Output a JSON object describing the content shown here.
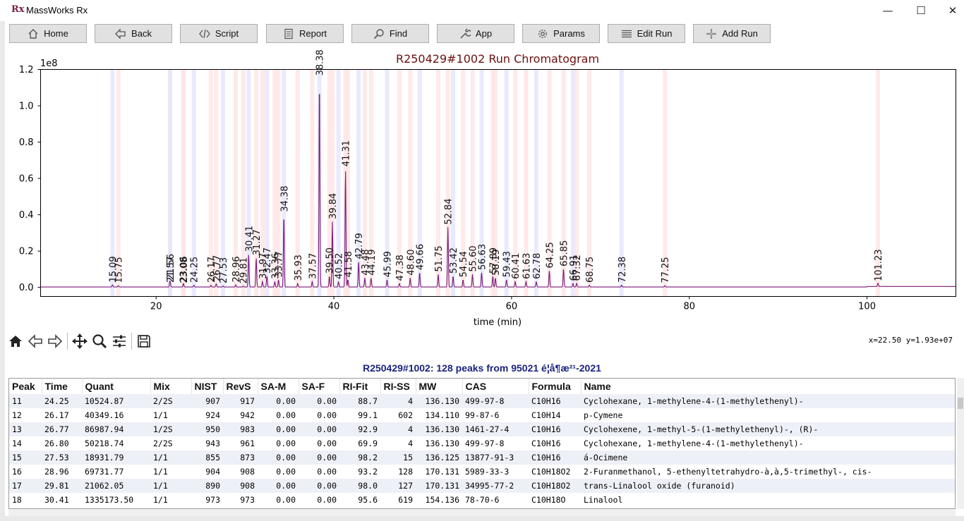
{
  "window": {
    "title": "MassWorks Rx",
    "logo": "Rx",
    "controls": [
      "—",
      "☐",
      "✕"
    ]
  },
  "toolbar": [
    {
      "label": "Home",
      "icon": "home-icon"
    },
    {
      "label": "Back",
      "icon": "back-arrow-icon"
    },
    {
      "label": "Script",
      "icon": "script-icon"
    },
    {
      "label": "Report",
      "icon": "report-icon"
    },
    {
      "label": "Find",
      "icon": "search-icon"
    },
    {
      "label": "App",
      "icon": "wrench-icon"
    },
    {
      "label": "Params",
      "icon": "gear-icon"
    },
    {
      "label": "Edit Run",
      "icon": "list-icon"
    },
    {
      "label": "Add Run",
      "icon": "plus-icon"
    }
  ],
  "chart_data": {
    "type": "line",
    "title": "R250429#1002 Run Chromatogram",
    "xlabel": "time (min)",
    "ylabel": "",
    "y_offset_label": "1e8",
    "xlim": [
      7,
      110
    ],
    "ylim": [
      -0.05,
      1.2
    ],
    "xticks": [
      20,
      40,
      60,
      80,
      100
    ],
    "yticks": [
      0.0,
      0.2,
      0.4,
      0.6,
      0.8,
      1.0,
      1.2
    ],
    "ytick_labels": [
      "0.0",
      "0.2",
      "0.4",
      "0.6",
      "0.8",
      "1.0",
      "1.2"
    ],
    "grid": false,
    "line_color": "#7b1a7b",
    "peaks": [
      {
        "t": 15.09,
        "h": 0.012,
        "label": "15.09"
      },
      {
        "t": 15.75,
        "h": 0.008,
        "label": "15.75"
      },
      {
        "t": 21.56,
        "h": 0.025,
        "label": "21.56"
      },
      {
        "t": 21.57,
        "h": 0.01,
        "label": "21.57"
      },
      {
        "t": 23.06,
        "h": 0.012,
        "label": "23.06"
      },
      {
        "t": 23.08,
        "h": 0.008,
        "label": "23.08"
      },
      {
        "t": 24.25,
        "h": 0.01,
        "label": "24.25"
      },
      {
        "t": 26.17,
        "h": 0.01,
        "label": "26.17"
      },
      {
        "t": 26.77,
        "h": 0.018,
        "label": "26.77"
      },
      {
        "t": 27.53,
        "h": 0.006,
        "label": "27.53"
      },
      {
        "t": 28.96,
        "h": 0.012,
        "label": "28.96"
      },
      {
        "t": 29.81,
        "h": 0.005,
        "label": "29.81"
      },
      {
        "t": 30.41,
        "h": 0.18,
        "label": "30.41"
      },
      {
        "t": 31.27,
        "h": 0.16,
        "label": "31.27"
      },
      {
        "t": 31.97,
        "h": 0.03,
        "label": "31.97"
      },
      {
        "t": 32.47,
        "h": 0.06,
        "label": "32.47"
      },
      {
        "t": 33.36,
        "h": 0.03,
        "label": "33.36"
      },
      {
        "t": 33.77,
        "h": 0.04,
        "label": "33.77"
      },
      {
        "t": 34.38,
        "h": 0.4,
        "label": "34.38"
      },
      {
        "t": 35.93,
        "h": 0.02,
        "label": "35.93"
      },
      {
        "t": 37.57,
        "h": 0.03,
        "label": "37.57"
      },
      {
        "t": 38.38,
        "h": 1.15,
        "label": "38.38"
      },
      {
        "t": 39.5,
        "h": 0.06,
        "label": "39.50"
      },
      {
        "t": 39.84,
        "h": 0.36,
        "label": "39.84"
      },
      {
        "t": 40.52,
        "h": 0.03,
        "label": "40.52"
      },
      {
        "t": 41.31,
        "h": 0.65,
        "label": "41.31"
      },
      {
        "t": 41.58,
        "h": 0.04,
        "label": "41.58"
      },
      {
        "t": 42.79,
        "h": 0.14,
        "label": "42.79"
      },
      {
        "t": 43.48,
        "h": 0.05,
        "label": "43.48"
      },
      {
        "t": 44.19,
        "h": 0.05,
        "label": "44.19"
      },
      {
        "t": 45.99,
        "h": 0.04,
        "label": "45.99"
      },
      {
        "t": 47.38,
        "h": 0.02,
        "label": "47.38"
      },
      {
        "t": 48.6,
        "h": 0.05,
        "label": "48.60"
      },
      {
        "t": 49.66,
        "h": 0.08,
        "label": "49.66"
      },
      {
        "t": 51.75,
        "h": 0.07,
        "label": "51.75"
      },
      {
        "t": 52.84,
        "h": 0.33,
        "label": "52.84"
      },
      {
        "t": 53.42,
        "h": 0.06,
        "label": "53.42"
      },
      {
        "t": 54.54,
        "h": 0.04,
        "label": "54.54"
      },
      {
        "t": 55.6,
        "h": 0.07,
        "label": "55.60"
      },
      {
        "t": 56.63,
        "h": 0.08,
        "label": "56.63"
      },
      {
        "t": 57.89,
        "h": 0.06,
        "label": "57.89"
      },
      {
        "t": 58.19,
        "h": 0.05,
        "label": "58.19"
      },
      {
        "t": 59.43,
        "h": 0.04,
        "label": "59.43"
      },
      {
        "t": 60.41,
        "h": 0.03,
        "label": "60.41"
      },
      {
        "t": 61.63,
        "h": 0.03,
        "label": "61.63"
      },
      {
        "t": 62.78,
        "h": 0.03,
        "label": "62.78"
      },
      {
        "t": 64.25,
        "h": 0.09,
        "label": "64.25"
      },
      {
        "t": 65.85,
        "h": 0.1,
        "label": "65.85"
      },
      {
        "t": 66.91,
        "h": 0.02,
        "label": "66.91"
      },
      {
        "t": 67.32,
        "h": 0.02,
        "label": "67.32"
      },
      {
        "t": 68.75,
        "h": 0.01,
        "label": "68.75"
      },
      {
        "t": 72.38,
        "h": 0.01,
        "label": "72.38"
      },
      {
        "t": 77.25,
        "h": 0.008,
        "label": "77.25"
      },
      {
        "t": 101.23,
        "h": 0.018,
        "label": "101.23"
      }
    ]
  },
  "plot_toolbar": {
    "tools": [
      "home-icon",
      "back-icon",
      "forward-icon",
      "pan-icon",
      "zoom-icon",
      "configure-icon",
      "save-icon"
    ],
    "coords": "x=22.50 y=1.93e+07"
  },
  "peaks_table": {
    "title": "R250429#1002: 128 peaks from 95021 é¦å¶æ²¹-2021",
    "columns": [
      "Peak",
      "Time",
      "Quant",
      "Mix",
      "NIST",
      "RevS",
      "SA-M",
      "SA-F",
      "RI-Fit",
      "RI-SS",
      "MW",
      "CAS",
      "Formula",
      "Name"
    ],
    "rows": [
      [
        "11",
        "24.25",
        "10524.87",
        "2/2S",
        "907",
        "917",
        "0.00",
        "0.00",
        "88.7",
        "4",
        "136.130",
        "499-97-8",
        "C10H16",
        "Cyclohexane, 1-methylene-4-(1-methylethenyl)-"
      ],
      [
        "12",
        "26.17",
        "40349.16",
        "1/1",
        "924",
        "942",
        "0.00",
        "0.00",
        "99.1",
        "602",
        "134.110",
        "99-87-6",
        "C10H14",
        "p-Cymene"
      ],
      [
        "13",
        "26.77",
        "86987.94",
        "1/2S",
        "950",
        "983",
        "0.00",
        "0.00",
        "92.9",
        "4",
        "136.130",
        "1461-27-4",
        "C10H16",
        "Cyclohexene, 1-methyl-5-(1-methylethenyl)-, (R)-"
      ],
      [
        "14",
        "26.80",
        "50218.74",
        "2/2S",
        "943",
        "961",
        "0.00",
        "0.00",
        "69.9",
        "4",
        "136.130",
        "499-97-8",
        "C10H16",
        "Cyclohexane, 1-methylene-4-(1-methylethenyl)-"
      ],
      [
        "15",
        "27.53",
        "18931.79",
        "1/1",
        "855",
        "873",
        "0.00",
        "0.00",
        "98.2",
        "15",
        "136.125",
        "13877-91-3",
        "C10H16",
        "á-Ocimene"
      ],
      [
        "16",
        "28.96",
        "69731.77",
        "1/1",
        "904",
        "908",
        "0.00",
        "0.00",
        "93.2",
        "128",
        "170.131",
        "5989-33-3",
        "C10H18O2",
        "2-Furanmethanol, 5-ethenyltetrahydro-à,à,5-trimethyl-, cis-"
      ],
      [
        "17",
        "29.81",
        "21062.05",
        "1/1",
        "890",
        "908",
        "0.00",
        "0.00",
        "98.0",
        "127",
        "170.131",
        "34995-77-2",
        "C10H18O2",
        "trans-Linalool oxide (furanoid)"
      ],
      [
        "18",
        "30.41",
        "1335173.50",
        "1/1",
        "973",
        "973",
        "0.00",
        "0.00",
        "95.6",
        "619",
        "154.136",
        "78-70-6",
        "C10H18O",
        "Linalool"
      ]
    ]
  }
}
